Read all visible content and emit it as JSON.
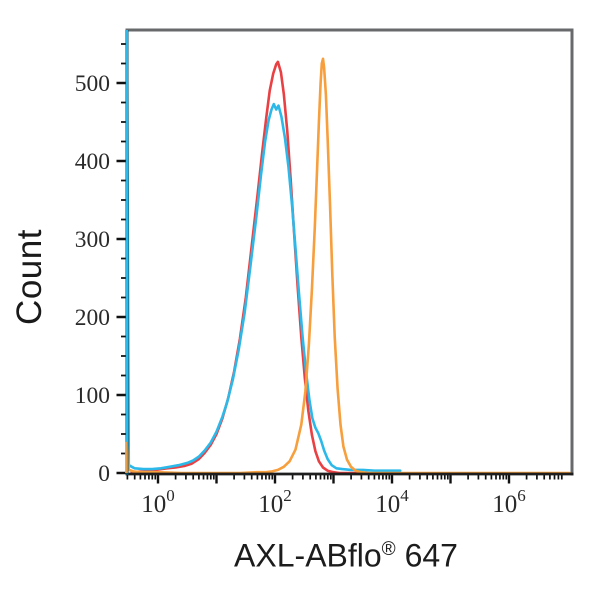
{
  "figure": {
    "ylabel": "Count",
    "xlabel_main": "AXL-ABflo",
    "xlabel_sup": "®",
    "xlabel_suffix": " 647"
  },
  "chart_data": {
    "type": "line",
    "subtype": "flow-cytometry-histogram-overlay",
    "title": "",
    "xlabel": "AXL-ABflo® 647",
    "ylabel": "Count",
    "x_scale": "log10",
    "x_log_range": [
      -0.53,
      7.03
    ],
    "ylim": [
      0,
      568
    ],
    "grid": false,
    "legend_position": "none",
    "y_major_ticks": [
      0,
      100,
      200,
      300,
      400,
      500
    ],
    "y_minor_step": 25,
    "y_minor_max": 550,
    "x_tick_base": "10",
    "x_labeled_decades": [
      0,
      2,
      4,
      6
    ],
    "x_decade_ticks": [
      0,
      1,
      2,
      3,
      4,
      5,
      6
    ],
    "colors": {
      "red": "#e94043",
      "cyan": "#2cb9e9",
      "orange": "#f79e3d",
      "frame_gray": "#67696b",
      "axis_black": "#1e1e1e",
      "left_spine_teal": "#0b4e66",
      "tick_black": "#111111",
      "tick_label": "#2a2a2a"
    },
    "series": [
      {
        "name": "red",
        "color": "#e94043",
        "peak": {
          "x_log": 2.05,
          "count": 527
        },
        "points": [
          [
            -0.45,
            1
          ],
          [
            -0.25,
            2
          ],
          [
            -0.05,
            4
          ],
          [
            0.15,
            6
          ],
          [
            0.3,
            7
          ],
          [
            0.45,
            9
          ],
          [
            0.58,
            12
          ],
          [
            0.7,
            18
          ],
          [
            0.8,
            26
          ],
          [
            0.9,
            36
          ],
          [
            1.0,
            50
          ],
          [
            1.1,
            70
          ],
          [
            1.2,
            96
          ],
          [
            1.3,
            130
          ],
          [
            1.4,
            172
          ],
          [
            1.5,
            225
          ],
          [
            1.6,
            290
          ],
          [
            1.7,
            355
          ],
          [
            1.78,
            410
          ],
          [
            1.85,
            455
          ],
          [
            1.91,
            490
          ],
          [
            1.97,
            512
          ],
          [
            2.02,
            524
          ],
          [
            2.05,
            527
          ],
          [
            2.1,
            514
          ],
          [
            2.15,
            486
          ],
          [
            2.21,
            438
          ],
          [
            2.27,
            374
          ],
          [
            2.33,
            304
          ],
          [
            2.39,
            236
          ],
          [
            2.45,
            174
          ],
          [
            2.51,
            122
          ],
          [
            2.57,
            80
          ],
          [
            2.63,
            49
          ],
          [
            2.69,
            28
          ],
          [
            2.75,
            15
          ],
          [
            2.82,
            7
          ],
          [
            2.9,
            3
          ],
          [
            3.0,
            1
          ],
          [
            3.1,
            0
          ],
          [
            3.5,
            0
          ]
        ]
      },
      {
        "name": "cyan",
        "color": "#2cb9e9",
        "peak": {
          "x_log": 1.98,
          "count": 473
        },
        "points": [
          [
            -0.53,
            0
          ],
          [
            -0.53,
            568
          ],
          [
            -0.5,
            10
          ],
          [
            -0.4,
            6
          ],
          [
            -0.25,
            5
          ],
          [
            -0.1,
            5
          ],
          [
            0.05,
            6
          ],
          [
            0.2,
            8
          ],
          [
            0.35,
            10
          ],
          [
            0.5,
            13
          ],
          [
            0.6,
            16
          ],
          [
            0.7,
            21
          ],
          [
            0.8,
            29
          ],
          [
            0.9,
            39
          ],
          [
            1.0,
            53
          ],
          [
            1.1,
            72
          ],
          [
            1.18,
            90
          ],
          [
            1.28,
            120
          ],
          [
            1.38,
            158
          ],
          [
            1.48,
            205
          ],
          [
            1.58,
            265
          ],
          [
            1.68,
            328
          ],
          [
            1.76,
            382
          ],
          [
            1.83,
            425
          ],
          [
            1.89,
            452
          ],
          [
            1.94,
            466
          ],
          [
            1.98,
            473
          ],
          [
            2.02,
            466
          ],
          [
            2.06,
            471
          ],
          [
            2.11,
            457
          ],
          [
            2.17,
            430
          ],
          [
            2.23,
            392
          ],
          [
            2.29,
            344
          ],
          [
            2.35,
            288
          ],
          [
            2.41,
            230
          ],
          [
            2.47,
            176
          ],
          [
            2.53,
            130
          ],
          [
            2.59,
            93
          ],
          [
            2.64,
            70
          ],
          [
            2.69,
            58
          ],
          [
            2.74,
            51
          ],
          [
            2.79,
            41
          ],
          [
            2.84,
            29
          ],
          [
            2.9,
            18
          ],
          [
            2.97,
            10
          ],
          [
            3.05,
            6
          ],
          [
            3.15,
            5
          ],
          [
            3.3,
            4
          ],
          [
            3.5,
            4
          ],
          [
            3.7,
            3
          ],
          [
            3.9,
            3
          ],
          [
            4.14,
            3
          ]
        ]
      },
      {
        "name": "orange",
        "color": "#f79e3d",
        "peak": {
          "x_log": 2.82,
          "count": 531
        },
        "points": [
          [
            -0.53,
            0
          ],
          [
            -0.53,
            40
          ],
          [
            -0.5,
            4
          ],
          [
            -0.42,
            2
          ],
          [
            -0.3,
            1
          ],
          [
            0.0,
            1
          ],
          [
            0.4,
            0
          ],
          [
            0.9,
            0
          ],
          [
            1.4,
            0
          ],
          [
            1.7,
            1
          ],
          [
            1.85,
            1
          ],
          [
            1.95,
            2
          ],
          [
            2.05,
            4
          ],
          [
            2.15,
            8
          ],
          [
            2.25,
            15
          ],
          [
            2.35,
            30
          ],
          [
            2.45,
            62
          ],
          [
            2.52,
            105
          ],
          [
            2.58,
            165
          ],
          [
            2.63,
            235
          ],
          [
            2.68,
            315
          ],
          [
            2.72,
            390
          ],
          [
            2.75,
            450
          ],
          [
            2.78,
            500
          ],
          [
            2.8,
            525
          ],
          [
            2.82,
            531
          ],
          [
            2.84,
            520
          ],
          [
            2.87,
            485
          ],
          [
            2.9,
            430
          ],
          [
            2.94,
            345
          ],
          [
            2.98,
            255
          ],
          [
            3.02,
            175
          ],
          [
            3.07,
            108
          ],
          [
            3.12,
            62
          ],
          [
            3.17,
            34
          ],
          [
            3.23,
            17
          ],
          [
            3.3,
            8
          ],
          [
            3.38,
            3
          ],
          [
            3.47,
            1
          ],
          [
            3.6,
            0
          ],
          [
            4.0,
            0
          ],
          [
            4.5,
            0
          ],
          [
            5.0,
            0
          ],
          [
            5.5,
            0
          ],
          [
            6.0,
            0
          ],
          [
            6.5,
            0
          ],
          [
            7.03,
            0
          ]
        ]
      }
    ]
  }
}
